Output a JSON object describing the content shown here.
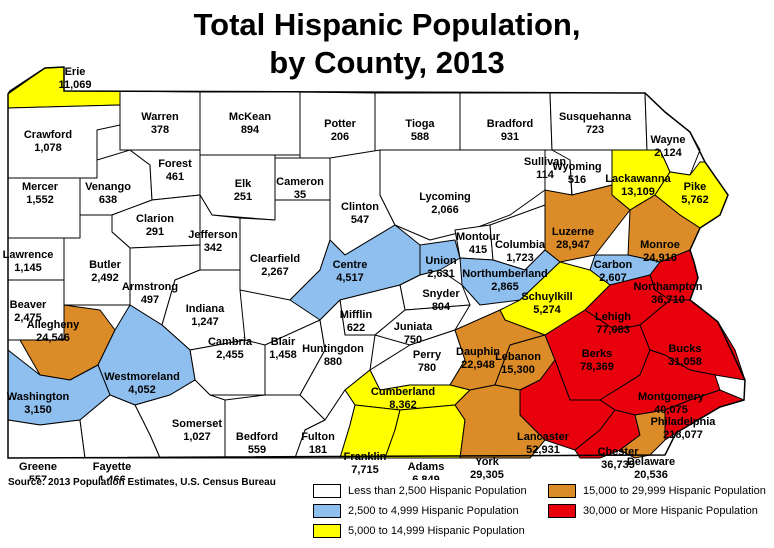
{
  "title": {
    "line1": "Total Hispanic Population,",
    "line2": "by County, 2013"
  },
  "source": "Source:  2013 Population Estimates, U.S. Census Bureau",
  "colors": {
    "lt2500": "#ffffff",
    "c2500_4999": "#8fbfef",
    "c5000_14999": "#ffff00",
    "c15000_29999": "#db8b27",
    "c30000plus": "#e8000c"
  },
  "legend": [
    {
      "key": "lt2500",
      "label": "Less than 2,500 Hispanic Population"
    },
    {
      "key": "c2500_4999",
      "label": "2,500 to 4,999 Hispanic Population"
    },
    {
      "key": "c5000_14999",
      "label": "5,000 to 14,999 Hispanic Population"
    },
    {
      "key": "c15000_29999",
      "label": "15,000 to 29,999 Hispanic Population"
    },
    {
      "key": "c30000plus",
      "label": "30,000 or More Hispanic Population"
    }
  ],
  "counties": [
    {
      "name": "Erie",
      "value": "11,069",
      "category": "c5000_14999"
    },
    {
      "name": "Crawford",
      "value": "1,078",
      "category": "lt2500"
    },
    {
      "name": "Warren",
      "value": "378",
      "category": "lt2500"
    },
    {
      "name": "McKean",
      "value": "894",
      "category": "lt2500"
    },
    {
      "name": "Potter",
      "value": "206",
      "category": "lt2500"
    },
    {
      "name": "Tioga",
      "value": "588",
      "category": "lt2500"
    },
    {
      "name": "Bradford",
      "value": "931",
      "category": "lt2500"
    },
    {
      "name": "Susquehanna",
      "value": "723",
      "category": "lt2500"
    },
    {
      "name": "Wayne",
      "value": "2,124",
      "category": "lt2500"
    },
    {
      "name": "Mercer",
      "value": "1,552",
      "category": "lt2500"
    },
    {
      "name": "Venango",
      "value": "638",
      "category": "lt2500"
    },
    {
      "name": "Forest",
      "value": "461",
      "category": "lt2500"
    },
    {
      "name": "Elk",
      "value": "251",
      "category": "lt2500"
    },
    {
      "name": "Cameron",
      "value": "35",
      "category": "lt2500"
    },
    {
      "name": "Clinton",
      "value": "547",
      "category": "lt2500"
    },
    {
      "name": "Lycoming",
      "value": "2,066",
      "category": "lt2500"
    },
    {
      "name": "Sullivan",
      "value": "114",
      "category": "lt2500"
    },
    {
      "name": "Wyoming",
      "value": "516",
      "category": "lt2500"
    },
    {
      "name": "Lackawanna",
      "value": "13,109",
      "category": "c5000_14999"
    },
    {
      "name": "Pike",
      "value": "5,762",
      "category": "c5000_14999"
    },
    {
      "name": "Clarion",
      "value": "291",
      "category": "lt2500"
    },
    {
      "name": "Jefferson",
      "value": "342",
      "category": "lt2500"
    },
    {
      "name": "Lawrence",
      "value": "1,145",
      "category": "lt2500"
    },
    {
      "name": "Butler",
      "value": "2,492",
      "category": "lt2500"
    },
    {
      "name": "Armstrong",
      "value": "497",
      "category": "lt2500"
    },
    {
      "name": "Clearfield",
      "value": "2,267",
      "category": "lt2500"
    },
    {
      "name": "Centre",
      "value": "4,517",
      "category": "c2500_4999"
    },
    {
      "name": "Montour",
      "value": "415",
      "category": "lt2500"
    },
    {
      "name": "Columbia",
      "value": "1,723",
      "category": "lt2500"
    },
    {
      "name": "Luzerne",
      "value": "28,947",
      "category": "c15000_29999"
    },
    {
      "name": "Monroe",
      "value": "24,916",
      "category": "c15000_29999"
    },
    {
      "name": "Carbon",
      "value": "2,607",
      "category": "c2500_4999"
    },
    {
      "name": "Union",
      "value": "2,631",
      "category": "c2500_4999"
    },
    {
      "name": "Northumberland",
      "value": "2,865",
      "category": "c2500_4999"
    },
    {
      "name": "Beaver",
      "value": "2,475",
      "category": "lt2500"
    },
    {
      "name": "Indiana",
      "value": "1,247",
      "category": "lt2500"
    },
    {
      "name": "Snyder",
      "value": "804",
      "category": "lt2500"
    },
    {
      "name": "Schuylkill",
      "value": "5,274",
      "category": "c5000_14999"
    },
    {
      "name": "Northampton",
      "value": "36,710",
      "category": "c30000plus"
    },
    {
      "name": "Allegheny",
      "value": "24,546",
      "category": "c15000_29999"
    },
    {
      "name": "Mifflin",
      "value": "622",
      "category": "lt2500"
    },
    {
      "name": "Juniata",
      "value": "750",
      "category": "lt2500"
    },
    {
      "name": "Lehigh",
      "value": "77,083",
      "category": "c30000plus"
    },
    {
      "name": "Cambria",
      "value": "2,455",
      "category": "lt2500"
    },
    {
      "name": "Blair",
      "value": "1,458",
      "category": "lt2500"
    },
    {
      "name": "Huntingdon",
      "value": "880",
      "category": "lt2500"
    },
    {
      "name": "Perry",
      "value": "780",
      "category": "lt2500"
    },
    {
      "name": "Dauphin",
      "value": "22,948",
      "category": "c15000_29999"
    },
    {
      "name": "Lebanon",
      "value": "15,300",
      "category": "c15000_29999"
    },
    {
      "name": "Berks",
      "value": "78,369",
      "category": "c30000plus"
    },
    {
      "name": "Bucks",
      "value": "31,058",
      "category": "c30000plus"
    },
    {
      "name": "Westmoreland",
      "value": "4,052",
      "category": "c2500_4999"
    },
    {
      "name": "Washington",
      "value": "3,150",
      "category": "c2500_4999"
    },
    {
      "name": "Cumberland",
      "value": "8,362",
      "category": "c5000_14999"
    },
    {
      "name": "Montgomery",
      "value": "40,075",
      "category": "c30000plus"
    },
    {
      "name": "Somerset",
      "value": "1,027",
      "category": "lt2500"
    },
    {
      "name": "Bedford",
      "value": "559",
      "category": "lt2500"
    },
    {
      "name": "Fulton",
      "value": "181",
      "category": "lt2500"
    },
    {
      "name": "Franklin",
      "value": "7,715",
      "category": "c5000_14999"
    },
    {
      "name": "Adams",
      "value": "6,849",
      "category": "c5000_14999"
    },
    {
      "name": "York",
      "value": "29,305",
      "category": "c15000_29999"
    },
    {
      "name": "Lancaster",
      "value": "52,931",
      "category": "c30000plus"
    },
    {
      "name": "Chester",
      "value": "36,739",
      "category": "c30000plus"
    },
    {
      "name": "Delaware",
      "value": "20,536",
      "category": "c15000_29999"
    },
    {
      "name": "Philadelphia",
      "value": "218,077",
      "category": "c30000plus"
    },
    {
      "name": "Greene",
      "value": "557",
      "category": "lt2500"
    },
    {
      "name": "Fayette",
      "value": "1,466",
      "category": "lt2500"
    }
  ]
}
